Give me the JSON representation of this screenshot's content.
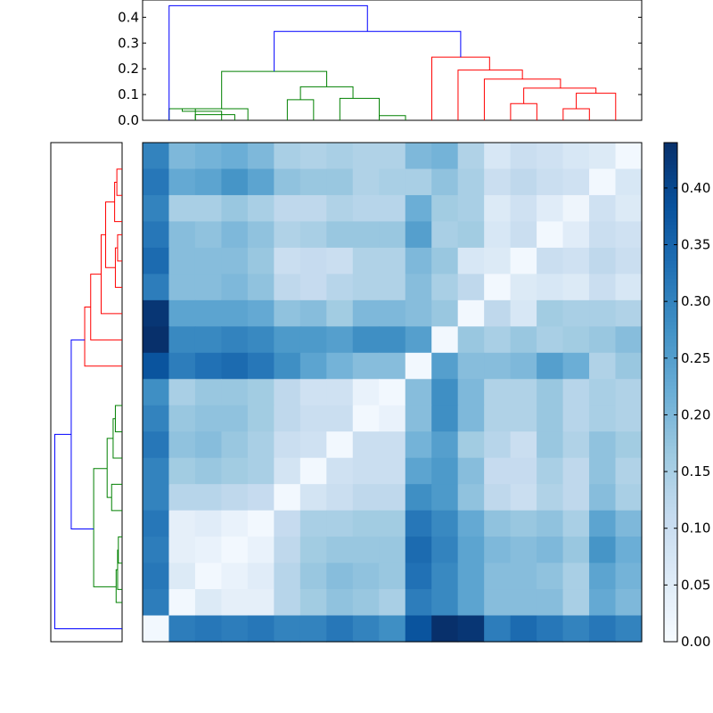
{
  "chart_data": [
    {
      "type": "dendrogram",
      "orientation": "top",
      "ylim": [
        0,
        0.467
      ],
      "yticks": [
        0.0,
        0.1,
        0.2,
        0.3,
        0.4
      ],
      "ytick_labels": [
        "0.0",
        "0.1",
        "0.2",
        "0.3",
        "0.4"
      ],
      "colors": {
        "root": "#0000ff",
        "cluster_a": "#008000",
        "cluster_b": "#ff0000"
      },
      "links": [
        {
          "left": 0.5,
          "right": 4.25,
          "left_h": 0.0,
          "right_h": 0.0,
          "height": 0.05,
          "color": "#008000",
          "ends_note": "placeholder"
        }
      ]
    },
    {
      "type": "dendrogram",
      "orientation": "left",
      "colors": {
        "root": "#0000ff",
        "cluster_a": "#008000",
        "cluster_b": "#ff0000"
      }
    },
    {
      "type": "heatmap",
      "n": 19,
      "colormap": "Blues",
      "vmin": 0.0,
      "vmax": 0.44,
      "colorbar_ticks": [
        0.0,
        0.05,
        0.1,
        0.15,
        0.2,
        0.25,
        0.3,
        0.35,
        0.4
      ],
      "colorbar_tick_labels": [
        "0.00",
        "0.05",
        "0.10",
        "0.15",
        "0.20",
        "0.25",
        "0.30",
        "0.35",
        "0.40"
      ],
      "values": [
        [
          0.3,
          0.2,
          0.21,
          0.22,
          0.2,
          0.15,
          0.14,
          0.15,
          0.14,
          0.14,
          0.2,
          0.21,
          0.14,
          0.07,
          0.1,
          0.09,
          0.07,
          0.06,
          0.01
        ],
        [
          0.32,
          0.23,
          0.24,
          0.27,
          0.24,
          0.18,
          0.17,
          0.17,
          0.14,
          0.15,
          0.15,
          0.18,
          0.15,
          0.1,
          0.12,
          0.1,
          0.09,
          0.01,
          0.07
        ],
        [
          0.3,
          0.15,
          0.15,
          0.17,
          0.15,
          0.12,
          0.12,
          0.14,
          0.13,
          0.13,
          0.22,
          0.16,
          0.15,
          0.06,
          0.09,
          0.05,
          0.02,
          0.09,
          0.06
        ],
        [
          0.32,
          0.19,
          0.18,
          0.2,
          0.18,
          0.14,
          0.15,
          0.17,
          0.17,
          0.17,
          0.25,
          0.15,
          0.16,
          0.07,
          0.1,
          0.01,
          0.05,
          0.1,
          0.09
        ],
        [
          0.34,
          0.19,
          0.19,
          0.19,
          0.17,
          0.1,
          0.11,
          0.1,
          0.14,
          0.14,
          0.2,
          0.17,
          0.07,
          0.06,
          0.01,
          0.1,
          0.09,
          0.12,
          0.1
        ],
        [
          0.31,
          0.19,
          0.19,
          0.2,
          0.18,
          0.12,
          0.11,
          0.13,
          0.14,
          0.14,
          0.19,
          0.15,
          0.12,
          0.01,
          0.06,
          0.07,
          0.06,
          0.1,
          0.07
        ],
        [
          0.43,
          0.24,
          0.24,
          0.24,
          0.23,
          0.18,
          0.19,
          0.16,
          0.2,
          0.2,
          0.19,
          0.17,
          0.01,
          0.12,
          0.07,
          0.16,
          0.15,
          0.15,
          0.14
        ],
        [
          0.44,
          0.29,
          0.29,
          0.3,
          0.29,
          0.26,
          0.26,
          0.25,
          0.28,
          0.28,
          0.25,
          0.01,
          0.17,
          0.15,
          0.17,
          0.15,
          0.16,
          0.17,
          0.19
        ],
        [
          0.38,
          0.31,
          0.33,
          0.34,
          0.32,
          0.28,
          0.24,
          0.21,
          0.19,
          0.19,
          0.01,
          0.25,
          0.19,
          0.19,
          0.2,
          0.25,
          0.22,
          0.14,
          0.17
        ],
        [
          0.28,
          0.15,
          0.17,
          0.17,
          0.16,
          0.12,
          0.09,
          0.09,
          0.03,
          0.01,
          0.19,
          0.28,
          0.2,
          0.14,
          0.14,
          0.17,
          0.13,
          0.15,
          0.14
        ],
        [
          0.3,
          0.17,
          0.18,
          0.18,
          0.16,
          0.12,
          0.1,
          0.1,
          0.01,
          0.03,
          0.19,
          0.28,
          0.2,
          0.14,
          0.14,
          0.17,
          0.13,
          0.15,
          0.14
        ],
        [
          0.32,
          0.18,
          0.19,
          0.17,
          0.15,
          0.1,
          0.09,
          0.01,
          0.1,
          0.1,
          0.21,
          0.25,
          0.16,
          0.13,
          0.1,
          0.17,
          0.14,
          0.18,
          0.16
        ],
        [
          0.3,
          0.16,
          0.17,
          0.16,
          0.15,
          0.08,
          0.01,
          0.09,
          0.1,
          0.1,
          0.24,
          0.26,
          0.19,
          0.11,
          0.11,
          0.15,
          0.12,
          0.18,
          0.14
        ],
        [
          0.3,
          0.13,
          0.13,
          0.12,
          0.11,
          0.01,
          0.08,
          0.1,
          0.12,
          0.12,
          0.28,
          0.26,
          0.18,
          0.12,
          0.1,
          0.14,
          0.12,
          0.19,
          0.15
        ],
        [
          0.32,
          0.04,
          0.05,
          0.03,
          0.01,
          0.11,
          0.15,
          0.15,
          0.16,
          0.16,
          0.32,
          0.29,
          0.23,
          0.18,
          0.17,
          0.18,
          0.15,
          0.24,
          0.2
        ],
        [
          0.31,
          0.04,
          0.03,
          0.01,
          0.03,
          0.12,
          0.16,
          0.17,
          0.17,
          0.17,
          0.34,
          0.3,
          0.24,
          0.2,
          0.19,
          0.2,
          0.17,
          0.27,
          0.22
        ],
        [
          0.32,
          0.06,
          0.01,
          0.03,
          0.05,
          0.13,
          0.17,
          0.19,
          0.18,
          0.17,
          0.33,
          0.29,
          0.24,
          0.19,
          0.19,
          0.18,
          0.15,
          0.24,
          0.21
        ],
        [
          0.31,
          0.01,
          0.06,
          0.04,
          0.04,
          0.13,
          0.16,
          0.18,
          0.17,
          0.15,
          0.31,
          0.29,
          0.24,
          0.19,
          0.19,
          0.19,
          0.15,
          0.23,
          0.2
        ],
        [
          0.01,
          0.31,
          0.32,
          0.31,
          0.32,
          0.3,
          0.3,
          0.32,
          0.3,
          0.28,
          0.38,
          0.44,
          0.43,
          0.31,
          0.34,
          0.32,
          0.3,
          0.32,
          0.3
        ]
      ]
    }
  ]
}
